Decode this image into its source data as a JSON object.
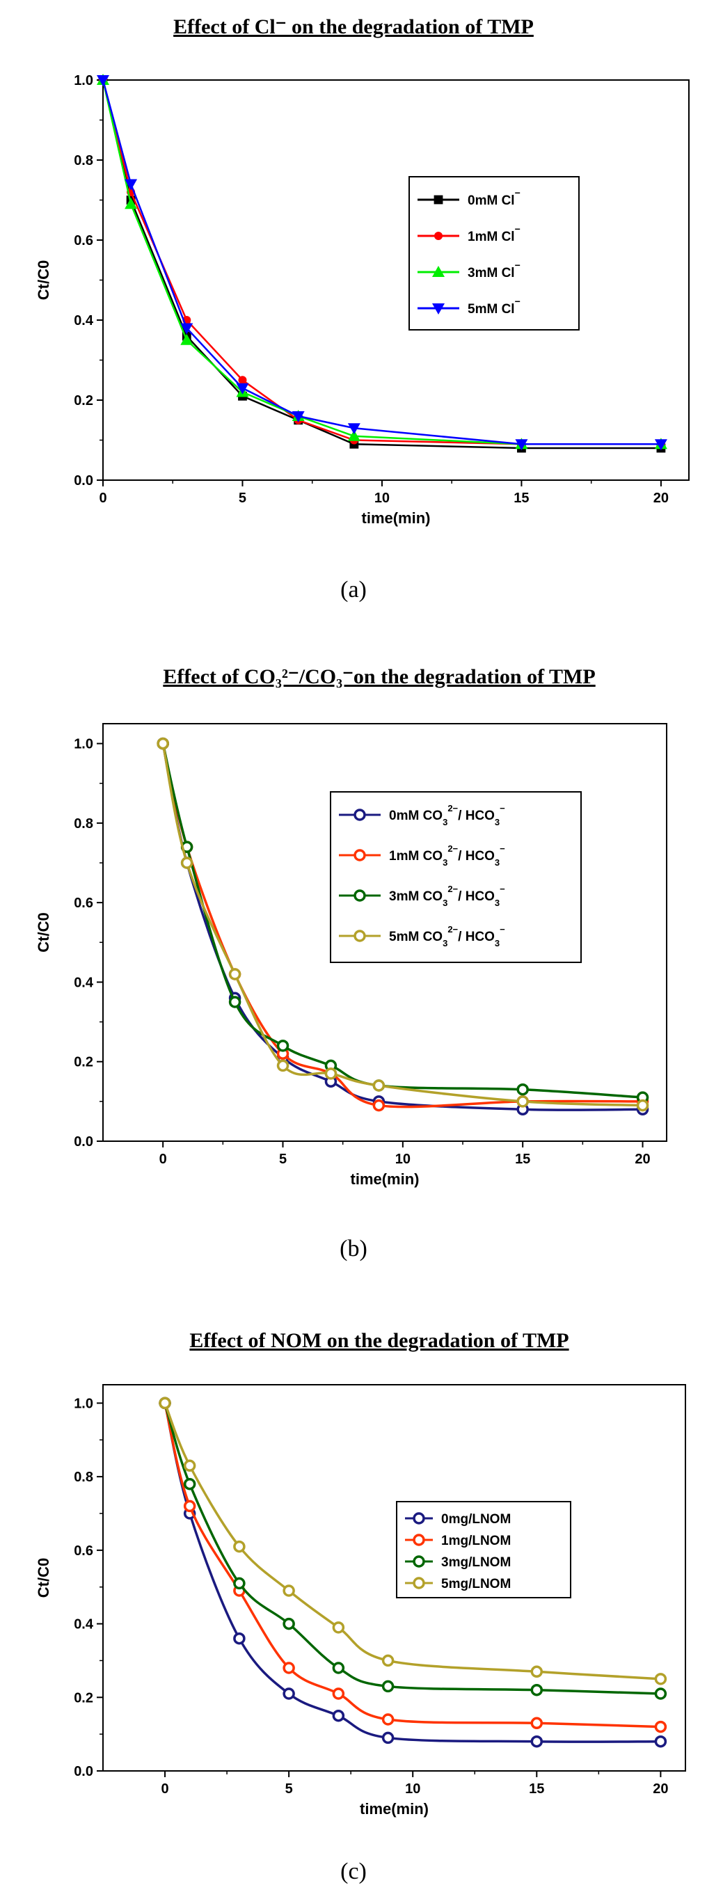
{
  "chart_data": [
    {
      "id": "a",
      "type": "line",
      "title": "Effect of Cl⁻ on the degradation of TMP",
      "caption": "(a)",
      "xlabel": "time(min)",
      "ylabel": "Ct/C0",
      "xlim": [
        0,
        21
      ],
      "ylim": [
        0,
        1.0
      ],
      "xticks": [
        0,
        5,
        10,
        15,
        20
      ],
      "yticks": [
        0.0,
        0.2,
        0.4,
        0.6,
        0.8,
        1.0
      ],
      "smooth": false,
      "x": [
        0,
        1,
        3,
        5,
        7,
        9,
        15,
        20
      ],
      "series": [
        {
          "name": "0mM Cl",
          "sup": "−",
          "color": "#000000",
          "marker": "square",
          "values": [
            1.0,
            0.7,
            0.36,
            0.21,
            0.15,
            0.09,
            0.08,
            0.08
          ]
        },
        {
          "name": "1mM Cl",
          "sup": "−",
          "color": "#ff0000",
          "marker": "circle",
          "values": [
            1.0,
            0.72,
            0.4,
            0.25,
            0.15,
            0.1,
            0.09,
            0.09
          ]
        },
        {
          "name": "3mM Cl",
          "sup": "−",
          "color": "#00ee00",
          "marker": "triangle-up",
          "values": [
            1.0,
            0.69,
            0.35,
            0.22,
            0.16,
            0.11,
            0.09,
            0.09
          ]
        },
        {
          "name": "5mM Cl",
          "sup": "−",
          "color": "#0000ff",
          "marker": "triangle-down",
          "values": [
            1.0,
            0.74,
            0.38,
            0.23,
            0.16,
            0.13,
            0.09,
            0.09
          ]
        }
      ]
    },
    {
      "id": "b",
      "type": "line",
      "title": "Effect of CO₃²⁻/CO₃⁻on the degradation of TMP",
      "caption": "(b)",
      "xlabel": "time(min)",
      "ylabel": "Ct/C0",
      "xlim": [
        -2.5,
        21
      ],
      "ylim": [
        0,
        1.05
      ],
      "xticks": [
        0,
        5,
        10,
        15,
        20
      ],
      "yticks": [
        0.0,
        0.2,
        0.4,
        0.6,
        0.8,
        1.0
      ],
      "smooth": true,
      "x": [
        0,
        1,
        3,
        5,
        7,
        9,
        15,
        20
      ],
      "series": [
        {
          "name": "0mM CO",
          "sub1": "3",
          "sup": "2−",
          "mid": "/ HCO",
          "sub2": "3",
          "sup2": "−",
          "color": "#1a1a80",
          "marker": "open-circle",
          "values": [
            1.0,
            0.7,
            0.36,
            0.21,
            0.15,
            0.1,
            0.08,
            0.08
          ]
        },
        {
          "name": "1mM CO",
          "sub1": "3",
          "sup": "2−",
          "mid": "/ HCO",
          "sub2": "3",
          "sup2": "−",
          "color": "#ff3300",
          "marker": "open-circle",
          "values": [
            1.0,
            0.74,
            0.42,
            0.22,
            0.17,
            0.09,
            0.1,
            0.1
          ]
        },
        {
          "name": "3mM CO",
          "sub1": "3",
          "sup": "2−",
          "mid": "/ HCO",
          "sub2": "3",
          "sup2": "−",
          "color": "#006600",
          "marker": "open-circle",
          "values": [
            1.0,
            0.74,
            0.35,
            0.24,
            0.19,
            0.14,
            0.13,
            0.11
          ]
        },
        {
          "name": "5mM CO",
          "sub1": "3",
          "sup": "2−",
          "mid": "/ HCO",
          "sub2": "3",
          "sup2": "−",
          "color": "#b3a12a",
          "marker": "open-circle",
          "values": [
            1.0,
            0.7,
            0.42,
            0.19,
            0.17,
            0.14,
            0.1,
            0.09
          ]
        }
      ]
    },
    {
      "id": "c",
      "type": "line",
      "title": "Effect of NOM on the degradation of TMP",
      "caption": "(c)",
      "xlabel": "time(min)",
      "ylabel": "Ct/C0",
      "xlim": [
        -2.5,
        21
      ],
      "ylim": [
        0,
        1.05
      ],
      "xticks": [
        0,
        5,
        10,
        15,
        20
      ],
      "yticks": [
        0.0,
        0.2,
        0.4,
        0.6,
        0.8,
        1.0
      ],
      "smooth": true,
      "x": [
        0,
        1,
        3,
        5,
        7,
        9,
        15,
        20
      ],
      "series": [
        {
          "name": "0mg/LNOM",
          "color": "#1a1a80",
          "marker": "open-circle",
          "values": [
            1.0,
            0.7,
            0.36,
            0.21,
            0.15,
            0.09,
            0.08,
            0.08
          ]
        },
        {
          "name": "1mg/LNOM",
          "color": "#ff3300",
          "marker": "open-circle",
          "values": [
            1.0,
            0.72,
            0.49,
            0.28,
            0.21,
            0.14,
            0.13,
            0.12
          ]
        },
        {
          "name": "3mg/LNOM",
          "color": "#006600",
          "marker": "open-circle",
          "values": [
            1.0,
            0.78,
            0.51,
            0.4,
            0.28,
            0.23,
            0.22,
            0.21
          ]
        },
        {
          "name": "5mg/LNOM",
          "color": "#b3a12a",
          "marker": "open-circle",
          "values": [
            1.0,
            0.83,
            0.61,
            0.49,
            0.39,
            0.3,
            0.27,
            0.25
          ]
        }
      ]
    }
  ]
}
